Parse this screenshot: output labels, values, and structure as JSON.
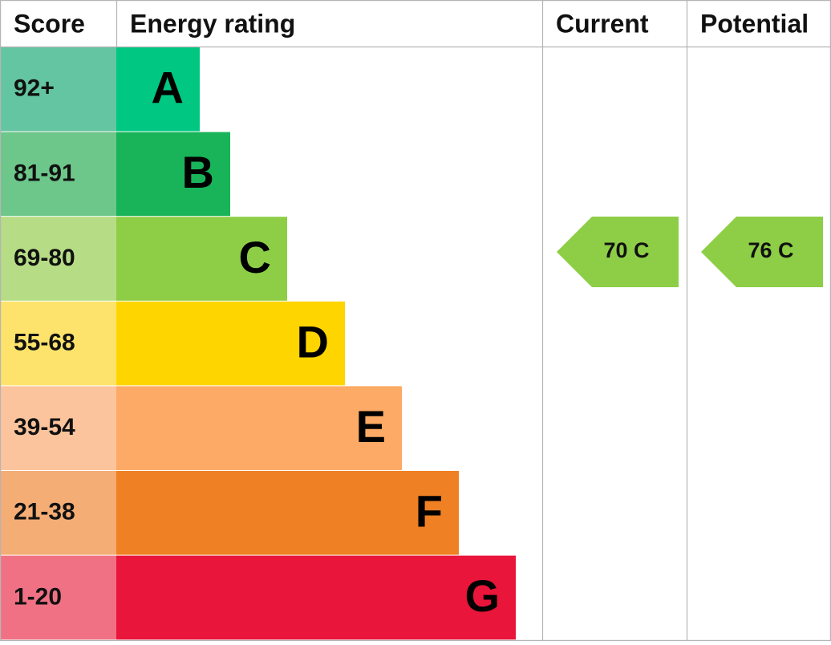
{
  "header": {
    "score": "Score",
    "rating": "Energy rating",
    "current": "Current",
    "potential": "Potential"
  },
  "bands": [
    {
      "score": "92+",
      "letter": "A"
    },
    {
      "score": "81-91",
      "letter": "B"
    },
    {
      "score": "69-80",
      "letter": "C"
    },
    {
      "score": "55-68",
      "letter": "D"
    },
    {
      "score": "39-54",
      "letter": "E"
    },
    {
      "score": "21-38",
      "letter": "F"
    },
    {
      "score": "1-20",
      "letter": "G"
    }
  ],
  "current": {
    "label": "70 C"
  },
  "potential": {
    "label": "76 C"
  }
}
